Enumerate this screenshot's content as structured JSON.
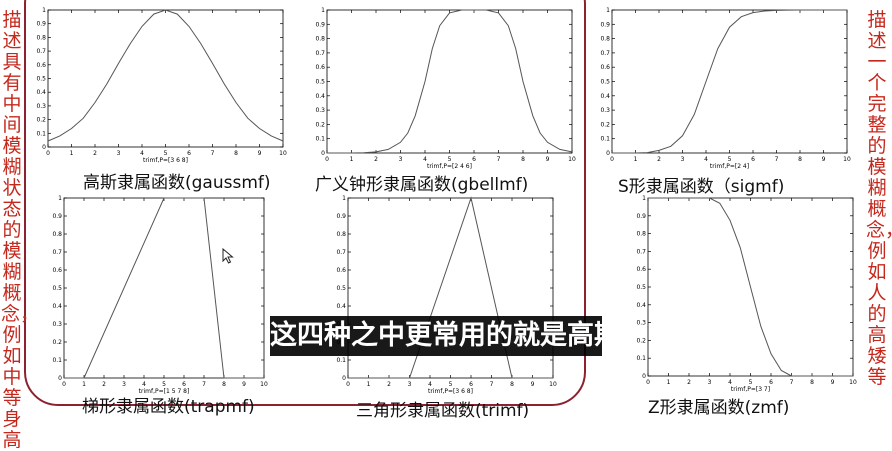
{
  "left_note": "描述具有中间模糊状态的模糊概念，例如中等身高",
  "right_note": "描述一个完整的模糊概念，例如人的高矮等",
  "subtitle": "这四种之中更常用的就是高斯",
  "chart_data": [
    {
      "type": "line",
      "xlabel": "trimf,P=[3 6 8]",
      "caption": "高斯隶属函数(gaussmf)",
      "xlim": [
        0,
        10
      ],
      "ylim": [
        0,
        1
      ],
      "xticks": [
        "0",
        "1",
        "2",
        "3",
        "4",
        "5",
        "6",
        "7",
        "8",
        "9",
        "10"
      ],
      "yticks": [
        "0",
        "0.1",
        "0.2",
        "0.3",
        "0.4",
        "0.5",
        "0.6",
        "0.7",
        "0.8",
        "0.9",
        "1"
      ],
      "x": [
        0,
        0.5,
        1,
        1.5,
        2,
        2.5,
        3,
        3.5,
        4,
        4.5,
        5,
        5.5,
        6,
        6.5,
        7,
        7.5,
        8,
        8.5,
        9,
        9.5,
        10
      ],
      "values": [
        0.044,
        0.081,
        0.135,
        0.21,
        0.325,
        0.46,
        0.61,
        0.755,
        0.88,
        0.97,
        1,
        0.97,
        0.88,
        0.755,
        0.61,
        0.46,
        0.325,
        0.21,
        0.135,
        0.081,
        0.044
      ]
    },
    {
      "type": "line",
      "xlabel": "trimf,P=[2 4 6]",
      "caption": "广义钟形隶属函数(gbellmf)",
      "xlim": [
        0,
        10
      ],
      "ylim": [
        0,
        1
      ],
      "xticks": [
        "0",
        "1",
        "2",
        "3",
        "4",
        "5",
        "6",
        "7",
        "8",
        "9",
        "10"
      ],
      "yticks": [
        "0",
        "0.1",
        "0.2",
        "0.3",
        "0.4",
        "0.5",
        "0.6",
        "0.7",
        "0.8",
        "0.9",
        "1"
      ],
      "x": [
        0,
        1,
        1.5,
        2,
        2.5,
        3,
        3.3,
        3.6,
        4,
        4.3,
        4.6,
        5,
        5.5,
        6,
        6.5,
        7,
        7.4,
        7.7,
        8,
        8.4,
        8.7,
        9,
        9.5,
        10
      ],
      "values": [
        0,
        0,
        0.002,
        0.008,
        0.025,
        0.075,
        0.14,
        0.26,
        0.5,
        0.73,
        0.89,
        0.98,
        1,
        1,
        1,
        0.98,
        0.89,
        0.73,
        0.5,
        0.26,
        0.14,
        0.075,
        0.025,
        0.008
      ]
    },
    {
      "type": "line",
      "xlabel": "trimf,P=[2 4]",
      "caption": "S形隶属函数（sigmf)",
      "xlim": [
        0,
        10
      ],
      "ylim": [
        0,
        1
      ],
      "xticks": [
        "0",
        "1",
        "2",
        "3",
        "4",
        "5",
        "6",
        "7",
        "8",
        "9",
        "10"
      ],
      "yticks": [
        "0",
        "0.1",
        "0.2",
        "0.3",
        "0.4",
        "0.5",
        "0.6",
        "0.7",
        "0.8",
        "0.9",
        "1"
      ],
      "x": [
        0,
        1,
        1.5,
        2,
        2.5,
        3,
        3.5,
        4,
        4.5,
        5,
        5.5,
        6,
        6.5,
        7,
        7.5,
        8,
        9,
        10
      ],
      "values": [
        0,
        0,
        0.003,
        0.018,
        0.047,
        0.12,
        0.27,
        0.5,
        0.73,
        0.88,
        0.953,
        0.982,
        0.993,
        0.997,
        0.999,
        1,
        1,
        1
      ]
    },
    {
      "type": "line",
      "xlabel": "trimf,P=[1 5 7 8]",
      "caption": "梯形隶属函数(trapmf)",
      "xlim": [
        0,
        10
      ],
      "ylim": [
        0,
        1
      ],
      "xticks": [
        "0",
        "1",
        "2",
        "3",
        "4",
        "5",
        "6",
        "7",
        "8",
        "9",
        "10"
      ],
      "yticks": [
        "0",
        "0.1",
        "0.2",
        "0.3",
        "0.4",
        "0.5",
        "0.6",
        "0.7",
        "0.8",
        "0.9",
        "1"
      ],
      "x": [
        0,
        1,
        5,
        7,
        8,
        10
      ],
      "values": [
        0,
        0,
        1,
        1,
        0,
        0
      ]
    },
    {
      "type": "line",
      "xlabel": "trimf,P=[3 6 8]",
      "caption": "三角形隶属函数(trimf)",
      "xlim": [
        0,
        10
      ],
      "ylim": [
        0,
        1
      ],
      "xticks": [
        "0",
        "1",
        "2",
        "3",
        "4",
        "5",
        "6",
        "7",
        "8",
        "9",
        "10"
      ],
      "yticks": [
        "0",
        "0.1",
        "0.2",
        "0.3",
        "0.4",
        "0.5",
        "0.6",
        "0.7",
        "0.8",
        "0.9",
        "1"
      ],
      "x": [
        0,
        3,
        6,
        8,
        10
      ],
      "values": [
        0,
        0,
        1,
        0,
        0
      ]
    },
    {
      "type": "line",
      "xlabel": "trimf,P=[3 7]",
      "caption": "Z形隶属函数(zmf)",
      "xlim": [
        0,
        10
      ],
      "ylim": [
        0,
        1
      ],
      "xticks": [
        "0",
        "1",
        "2",
        "3",
        "4",
        "5",
        "6",
        "7",
        "8",
        "9",
        "10"
      ],
      "yticks": [
        "0",
        "0.1",
        "0.2",
        "0.3",
        "0.4",
        "0.5",
        "0.6",
        "0.7",
        "0.8",
        "0.9",
        "1"
      ],
      "x": [
        0,
        1,
        2,
        3,
        3.5,
        4,
        4.5,
        5,
        5.5,
        6,
        6.5,
        7,
        8,
        9,
        10
      ],
      "values": [
        1,
        1,
        1,
        1,
        0.97,
        0.875,
        0.72,
        0.5,
        0.28,
        0.125,
        0.031,
        0,
        0,
        0,
        0
      ]
    }
  ]
}
